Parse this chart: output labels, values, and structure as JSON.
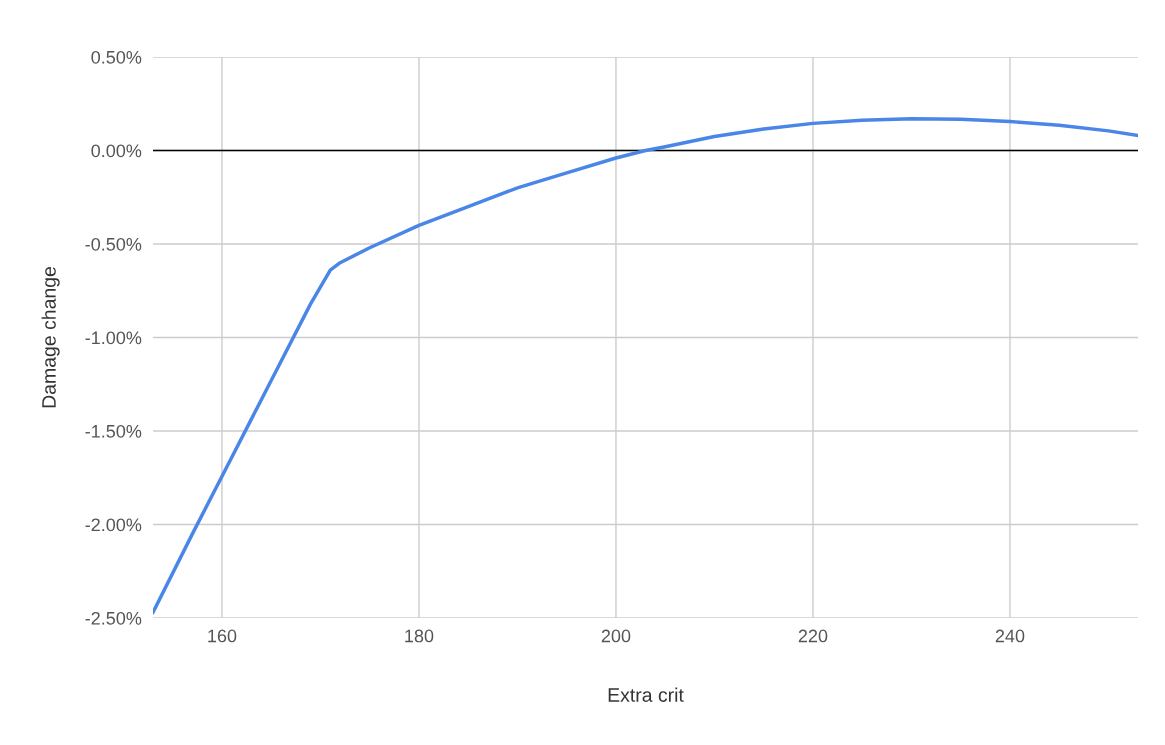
{
  "chart_data": {
    "type": "line",
    "xlabel": "Extra crit",
    "ylabel": "Damage change",
    "x": [
      153,
      157,
      161,
      165,
      169,
      171,
      172,
      175,
      180,
      185,
      190,
      195,
      200,
      203,
      205,
      210,
      215,
      220,
      225,
      230,
      235,
      240,
      245,
      250,
      253
    ],
    "series": [
      {
        "color": "#4a86e8",
        "values": [
          -2.47,
          -2.05,
          -1.64,
          -1.23,
          -0.82,
          -0.64,
          -0.6,
          -0.52,
          -0.4,
          -0.3,
          -0.2,
          -0.12,
          -0.04,
          0.0,
          0.02,
          0.075,
          0.115,
          0.145,
          0.162,
          0.17,
          0.167,
          0.155,
          0.135,
          0.105,
          0.08
        ]
      }
    ],
    "xlim": [
      153,
      253
    ],
    "xticks": [
      160,
      180,
      200,
      220,
      240
    ],
    "ylim": [
      -2.5,
      0.5
    ],
    "yticks": [
      {
        "value": -2.5,
        "label": "-2.50%"
      },
      {
        "value": -2.0,
        "label": "-2.00%"
      },
      {
        "value": -1.5,
        "label": "-1.50%"
      },
      {
        "value": -1.0,
        "label": "-1.00%"
      },
      {
        "value": -0.5,
        "label": "-0.50%"
      },
      {
        "value": 0.0,
        "label": "0.00%"
      },
      {
        "value": 0.5,
        "label": "0.50%"
      }
    ],
    "ref_lines": [
      {
        "axis": "y",
        "value": 0,
        "color": "#000000"
      }
    ],
    "grid": true,
    "marker": "none",
    "line_style": "solid",
    "legend": false
  }
}
